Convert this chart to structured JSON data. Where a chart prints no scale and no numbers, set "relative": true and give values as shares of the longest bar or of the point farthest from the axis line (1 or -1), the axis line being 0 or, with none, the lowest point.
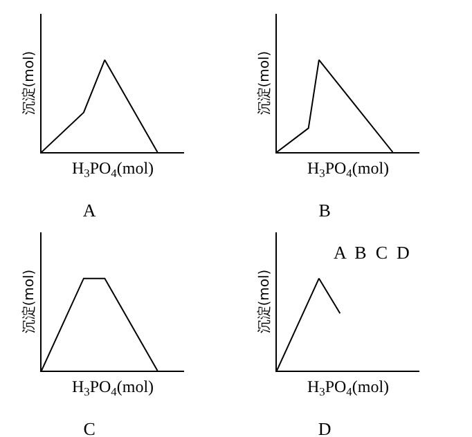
{
  "chart_data": [
    {
      "type": "line",
      "title": "A",
      "xlabel": "H$_{3}$PO$_{4}$(mol)",
      "ylabel": "沉淀(mol)",
      "relative": true,
      "marker": "none",
      "categories": [
        null,
        null,
        null,
        null,
        null,
        null,
        null,
        null,
        null,
        null,
        null,
        null
      ],
      "series": [
        {
          "color": "#000000",
          "values": [
            0,
            null,
            null,
            null,
            0.43,
            null,
            1,
            null,
            null,
            null,
            null,
            0
          ]
        }
      ]
    },
    {
      "type": "line",
      "title": "B",
      "xlabel": "H$_{3}$PO$_{4}$(mol)",
      "ylabel": "沉淀(mol)",
      "relative": true,
      "marker": "none",
      "categories": [
        null,
        null,
        null,
        null,
        null,
        null,
        null,
        null,
        null,
        null,
        null,
        null
      ],
      "series": [
        {
          "color": "#000000",
          "values": [
            0,
            null,
            null,
            0.26,
            1,
            null,
            null,
            null,
            null,
            null,
            null,
            0
          ]
        }
      ]
    },
    {
      "type": "line",
      "title": "C",
      "xlabel": "H$_{3}$PO$_{4}$(mol)",
      "ylabel": "沉淀(mol)",
      "relative": true,
      "marker": "none",
      "categories": [
        null,
        null,
        null,
        null,
        null,
        null,
        null,
        null,
        null,
        null,
        null,
        null
      ],
      "series": [
        {
          "color": "#000000",
          "values": [
            0,
            null,
            null,
            null,
            1,
            null,
            1,
            null,
            null,
            null,
            null,
            0
          ]
        }
      ]
    },
    {
      "type": "line",
      "title": "D",
      "xlabel": "H$_{3}$PO$_{4}$(mol)",
      "ylabel": "沉淀(mol)",
      "relative": true,
      "marker": "none",
      "annotations": [
        "A  B  C  D"
      ],
      "categories": [
        null,
        null,
        null,
        null,
        null,
        null,
        null,
        null,
        null,
        null,
        null,
        null
      ],
      "series": [
        {
          "color": "#000000",
          "values": [
            0,
            null,
            null,
            null,
            1,
            null,
            0.62,
            null,
            null,
            null,
            null,
            null
          ]
        }
      ]
    }
  ]
}
